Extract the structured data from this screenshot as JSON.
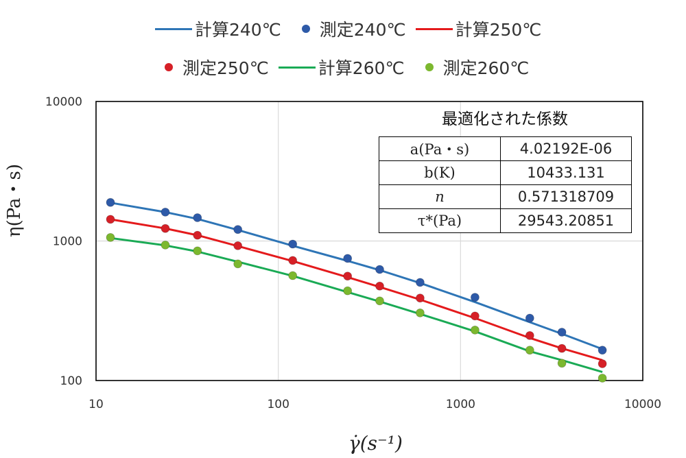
{
  "chart_data": {
    "type": "line",
    "xscale": "log",
    "yscale": "log",
    "xlim": [
      10,
      10000
    ],
    "ylim": [
      100,
      10000
    ],
    "xticks": [
      "10",
      "100",
      "1000",
      "10000"
    ],
    "yticks": [
      "100",
      "1000",
      "10000"
    ],
    "ylabel": "η(Pa・s)",
    "xlabel": "γ̇(s⁻¹)",
    "grid": true,
    "legend_position": "top",
    "series": [
      {
        "name": "計算240℃",
        "kind": "line",
        "color": "#2e75b6",
        "x": [
          12,
          24,
          36,
          60,
          120,
          240,
          360,
          600,
          1200,
          2400,
          3600,
          6000
        ],
        "values": [
          1880,
          1610,
          1440,
          1200,
          925,
          720,
          618,
          500,
          365,
          262,
          216,
          168
        ]
      },
      {
        "name": "測定240℃",
        "kind": "scatter",
        "color": "#2e5aa8",
        "x": [
          12,
          24,
          36,
          60,
          120,
          240,
          360,
          600,
          1200,
          2400,
          3600,
          6000
        ],
        "values": [
          1890,
          1610,
          1470,
          1210,
          950,
          750,
          625,
          505,
          395,
          280,
          222,
          165
        ]
      },
      {
        "name": "計算250℃",
        "kind": "line",
        "color": "#e41a1c",
        "x": [
          12,
          24,
          36,
          60,
          120,
          240,
          360,
          600,
          1200,
          2400,
          3600,
          6000
        ],
        "values": [
          1430,
          1230,
          1100,
          920,
          718,
          550,
          468,
          380,
          280,
          202,
          170,
          140
        ]
      },
      {
        "name": "測定250℃",
        "kind": "scatter",
        "color": "#d62027",
        "x": [
          12,
          24,
          36,
          60,
          120,
          240,
          360,
          600,
          1200,
          2400,
          3600,
          6000
        ],
        "values": [
          1430,
          1230,
          1100,
          925,
          725,
          560,
          475,
          390,
          290,
          210,
          170,
          132
        ]
      },
      {
        "name": "計算260℃",
        "kind": "line",
        "color": "#1aaa55",
        "x": [
          12,
          24,
          36,
          60,
          120,
          240,
          360,
          600,
          1200,
          2400,
          3600,
          6000
        ],
        "values": [
          1050,
          930,
          840,
          710,
          562,
          430,
          368,
          300,
          225,
          162,
          140,
          115
        ]
      },
      {
        "name": "測定260℃",
        "kind": "scatter",
        "color": "#7cb82f",
        "x": [
          12,
          24,
          36,
          60,
          120,
          240,
          360,
          600,
          1200,
          2400,
          3600,
          6000
        ],
        "values": [
          1060,
          935,
          850,
          685,
          565,
          440,
          372,
          305,
          230,
          165,
          133,
          104
        ]
      }
    ],
    "legend": {
      "row1": [
        "計算240℃",
        "測定240℃",
        "計算250℃"
      ],
      "row2": [
        "測定250℃",
        "計算260℃",
        "測定260℃"
      ]
    },
    "coefficient_table": {
      "title": "最適化された係数",
      "rows": [
        {
          "key": "a(Pa・s)",
          "value": "4.02192E-06"
        },
        {
          "key": "b(K)",
          "value": "10433.131"
        },
        {
          "key": "n",
          "value": "0.571318709"
        },
        {
          "key": "τ*(Pa)",
          "value": "29543.20851"
        }
      ]
    }
  }
}
